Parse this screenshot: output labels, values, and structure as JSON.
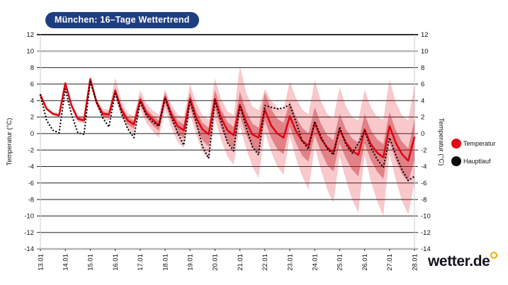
{
  "title": "München: 16–Tage Wettertrend",
  "brand": {
    "logo_text": "wetter.de"
  },
  "legend": [
    {
      "label": "Temperatur",
      "color": "#e10613"
    },
    {
      "label": "Hauptlauf",
      "color": "#0a0a0a"
    }
  ],
  "chart_data": {
    "type": "line",
    "title": "München: 16–Tage Wettertrend",
    "xlabel": "",
    "ylabel_left": "Temperatur (°C)",
    "ylabel_right": "Temperatur (°C)",
    "ylim": [
      -14,
      12
    ],
    "ytick_step": 2,
    "grid": "on",
    "legend_position": "right",
    "categories": [
      "13.01",
      "14.01",
      "15.01",
      "16.01",
      "17.01",
      "18.01",
      "19.01",
      "20.01",
      "21.01",
      "22.01",
      "23.01",
      "24.01",
      "25.01",
      "26.01",
      "27.01",
      "28.01"
    ],
    "points_per_day": 4,
    "series": [
      {
        "name": "Temperatur",
        "color": "#e10613",
        "style": "solid",
        "values": [
          4.7,
          3.0,
          2.4,
          2.2,
          6.1,
          3.4,
          1.8,
          1.6,
          6.6,
          3.8,
          2.4,
          2.3,
          5.2,
          2.9,
          1.6,
          1.1,
          4.1,
          2.5,
          1.7,
          1.0,
          4.4,
          2.3,
          0.9,
          0.4,
          4.2,
          1.9,
          0.5,
          -0.1,
          4.2,
          1.9,
          0.4,
          -0.2,
          3.5,
          1.4,
          -0.1,
          -0.5,
          2.9,
          1.0,
          0.0,
          -0.5,
          2.1,
          0.3,
          -0.9,
          -1.5,
          1.3,
          -0.6,
          -1.7,
          -2.3,
          0.5,
          -1.1,
          -2.1,
          -2.6,
          0.5,
          -1.3,
          -2.3,
          -2.9,
          0.9,
          -1.1,
          -2.5,
          -3.3,
          -0.4
        ]
      },
      {
        "name": "Hauptlauf",
        "color": "#0a0a0a",
        "style": "dotted",
        "values": [
          4.7,
          1.6,
          0.4,
          0.1,
          5.4,
          2.3,
          0.1,
          -0.1,
          6.3,
          3.9,
          1.9,
          0.8,
          5.0,
          2.5,
          0.6,
          -0.5,
          3.9,
          2.2,
          1.4,
          0.9,
          4.3,
          2.1,
          0.1,
          -1.4,
          4.0,
          1.4,
          -1.6,
          -3.0,
          4.0,
          1.4,
          -1.1,
          -2.1,
          3.4,
          0.8,
          -1.6,
          -2.6,
          3.4,
          3.2,
          3.0,
          3.1,
          3.5,
          1.4,
          -0.9,
          -1.9,
          1.5,
          -0.4,
          -1.8,
          -2.6,
          0.8,
          -1.3,
          -2.4,
          -1.2,
          0.3,
          -1.7,
          -3.1,
          -4.1,
          -0.5,
          -2.6,
          -4.4,
          -5.7,
          -5.2
        ]
      }
    ],
    "bands": [
      {
        "name": "ensemble-outer",
        "color": "rgba(225,6,19,0.22)",
        "hi": [
          4.9,
          3.2,
          2.6,
          2.5,
          6.4,
          3.7,
          2.2,
          2.1,
          7.0,
          4.3,
          3.0,
          2.9,
          6.8,
          3.9,
          2.5,
          2.1,
          5.3,
          3.6,
          2.8,
          2.3,
          5.4,
          3.5,
          2.3,
          2.0,
          6.0,
          3.7,
          2.2,
          1.7,
          6.7,
          4.2,
          2.7,
          2.2,
          8.2,
          5.0,
          3.3,
          2.8,
          5.4,
          4.0,
          3.2,
          2.9,
          6.3,
          4.3,
          2.9,
          2.3,
          6.5,
          3.9,
          2.4,
          1.8,
          5.6,
          3.3,
          2.0,
          1.6,
          5.3,
          3.2,
          2.0,
          1.7,
          6.6,
          3.8,
          2.2,
          1.6,
          5.9
        ],
        "lo": [
          4.5,
          2.8,
          2.2,
          2.0,
          5.8,
          3.0,
          1.4,
          1.2,
          6.2,
          3.3,
          1.8,
          1.6,
          4.4,
          2.0,
          0.6,
          0.0,
          3.0,
          1.3,
          0.3,
          -0.5,
          3.0,
          0.7,
          -1.0,
          -1.8,
          2.4,
          -0.2,
          -2.2,
          -3.2,
          1.8,
          -0.8,
          -2.8,
          -3.8,
          1.0,
          -1.8,
          -4.0,
          -5.4,
          0.2,
          -2.2,
          -4.0,
          -5.0,
          -0.3,
          -3.0,
          -5.2,
          -6.8,
          -1.6,
          -4.4,
          -6.8,
          -8.4,
          -2.8,
          -5.6,
          -8.0,
          -9.6,
          -2.6,
          -5.8,
          -8.2,
          -10.0,
          -2.4,
          -5.6,
          -8.2,
          -9.8,
          -6.0
        ]
      },
      {
        "name": "ensemble-inner",
        "color": "rgba(190,25,35,0.40)",
        "hi": [
          4.8,
          3.1,
          2.5,
          2.3,
          6.2,
          3.5,
          2.0,
          1.8,
          6.8,
          4.0,
          2.7,
          2.5,
          5.6,
          3.3,
          2.0,
          1.6,
          4.6,
          3.0,
          2.2,
          1.6,
          5.0,
          2.9,
          1.6,
          1.1,
          5.0,
          2.7,
          1.3,
          0.7,
          5.3,
          2.9,
          1.4,
          0.8,
          5.1,
          2.7,
          1.2,
          0.7,
          5.0,
          3.0,
          1.8,
          1.3,
          3.9,
          2.0,
          0.7,
          0.0,
          3.2,
          1.2,
          -0.2,
          -0.8,
          2.4,
          0.5,
          -0.6,
          -1.1,
          2.4,
          0.4,
          -0.7,
          -1.3,
          2.6,
          0.4,
          -1.0,
          -1.8,
          1.7
        ],
        "lo": [
          4.6,
          2.9,
          2.3,
          2.1,
          6.0,
          3.2,
          1.6,
          1.4,
          6.4,
          3.5,
          2.1,
          1.9,
          4.8,
          2.4,
          1.1,
          0.6,
          3.5,
          1.9,
          1.0,
          0.3,
          3.7,
          1.5,
          0.0,
          -0.6,
          3.2,
          0.8,
          -0.8,
          -1.6,
          3.0,
          0.6,
          -1.1,
          -1.9,
          2.2,
          -0.1,
          -1.7,
          -2.4,
          1.6,
          -0.5,
          -1.9,
          -2.5,
          0.8,
          -1.2,
          -2.7,
          -3.4,
          -0.2,
          -2.2,
          -3.8,
          -4.6,
          -1.2,
          -3.0,
          -4.4,
          -5.2,
          -1.2,
          -3.2,
          -4.6,
          -5.5,
          -1.0,
          -3.2,
          -4.9,
          -5.9,
          -3.2
        ]
      }
    ],
    "grid_colors": {
      "normal": "#222222",
      "emphasis": "#b5b5b5",
      "top": "#111111",
      "plot_edge": "#cccccc"
    }
  }
}
